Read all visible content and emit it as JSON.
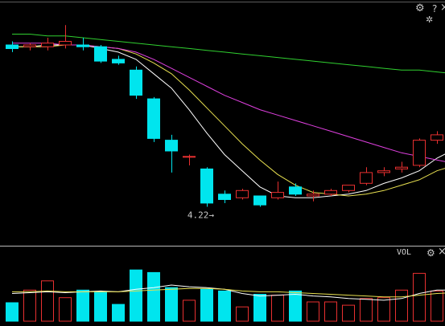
{
  "toolbar": {
    "main": [
      {
        "name": "gear-icon",
        "glyph": "⚙"
      },
      {
        "name": "help-icon",
        "glyph": "?"
      },
      {
        "name": "close-icon",
        "glyph": "×"
      }
    ],
    "sub_glyph": "✲",
    "vol_gear_glyph": "⚙",
    "vol_close_glyph": "×"
  },
  "colors": {
    "background": "#000000",
    "up_candle": "#e83030",
    "down_candle": "#00e5ee",
    "ma_short": "#ffffff",
    "ma_mid": "#e8e050",
    "ma_long": "#e040e0",
    "ma_longest": "#30d030",
    "divider": "#b8b8b8",
    "low_marker": "#c8c8c8"
  },
  "chart_data": [
    {
      "type": "candlestick",
      "candles": [
        {
          "o": 5.12,
          "h": 5.14,
          "l": 5.08,
          "c": 5.1
        },
        {
          "o": 5.11,
          "h": 5.13,
          "l": 5.09,
          "c": 5.12
        },
        {
          "o": 5.11,
          "h": 5.16,
          "l": 5.09,
          "c": 5.13
        },
        {
          "o": 5.12,
          "h": 5.23,
          "l": 5.1,
          "c": 5.14
        },
        {
          "o": 5.12,
          "h": 5.16,
          "l": 5.09,
          "c": 5.11
        },
        {
          "o": 5.11,
          "h": 5.12,
          "l": 5.02,
          "c": 5.03
        },
        {
          "o": 5.04,
          "h": 5.06,
          "l": 5.01,
          "c": 5.02
        },
        {
          "o": 4.98,
          "h": 5.0,
          "l": 4.82,
          "c": 4.84
        },
        {
          "o": 4.82,
          "h": 4.83,
          "l": 4.58,
          "c": 4.6
        },
        {
          "o": 4.59,
          "h": 4.62,
          "l": 4.41,
          "c": 4.53
        },
        {
          "o": 4.5,
          "h": 4.51,
          "l": 4.45,
          "c": 4.5
        },
        {
          "o": 4.43,
          "h": 4.44,
          "l": 4.22,
          "c": 4.24
        },
        {
          "o": 4.29,
          "h": 4.31,
          "l": 4.24,
          "c": 4.26
        },
        {
          "o": 4.27,
          "h": 4.32,
          "l": 4.26,
          "c": 4.31
        },
        {
          "o": 4.28,
          "h": 4.28,
          "l": 4.22,
          "c": 4.23
        },
        {
          "o": 4.27,
          "h": 4.36,
          "l": 4.26,
          "c": 4.3
        },
        {
          "o": 4.33,
          "h": 4.35,
          "l": 4.28,
          "c": 4.29
        },
        {
          "o": 4.28,
          "h": 4.31,
          "l": 4.25,
          "c": 4.29
        },
        {
          "o": 4.29,
          "h": 4.32,
          "l": 4.28,
          "c": 4.31
        },
        {
          "o": 4.31,
          "h": 4.34,
          "l": 4.3,
          "c": 4.34
        },
        {
          "o": 4.35,
          "h": 4.44,
          "l": 4.34,
          "c": 4.41
        },
        {
          "o": 4.41,
          "h": 4.44,
          "l": 4.39,
          "c": 4.42
        },
        {
          "o": 4.43,
          "h": 4.47,
          "l": 4.41,
          "c": 4.44
        },
        {
          "o": 4.45,
          "h": 4.6,
          "l": 4.44,
          "c": 4.59
        },
        {
          "o": 4.59,
          "h": 4.64,
          "l": 4.57,
          "c": 4.62
        },
        {
          "o": 4.62,
          "h": 4.64,
          "l": 4.58,
          "c": 4.58
        }
      ],
      "ma": [
        {
          "key": "ma_short",
          "values": [
            5.11,
            5.11,
            5.12,
            5.12,
            5.12,
            5.1,
            5.08,
            5.04,
            4.96,
            4.88,
            4.76,
            4.63,
            4.51,
            4.42,
            4.33,
            4.28,
            4.27,
            4.27,
            4.28,
            4.29,
            4.31,
            4.35,
            4.38,
            4.42,
            4.49,
            4.54
          ]
        },
        {
          "key": "ma_mid",
          "values": [
            5.11,
            5.11,
            5.11,
            5.12,
            5.12,
            5.11,
            5.1,
            5.07,
            5.02,
            4.96,
            4.87,
            4.77,
            4.67,
            4.57,
            4.48,
            4.4,
            4.34,
            4.3,
            4.29,
            4.28,
            4.29,
            4.31,
            4.34,
            4.37,
            4.42,
            4.45
          ]
        },
        {
          "key": "ma_long",
          "values": [
            5.13,
            5.13,
            5.13,
            5.12,
            5.12,
            5.11,
            5.1,
            5.08,
            5.04,
            4.99,
            4.94,
            4.89,
            4.84,
            4.8,
            4.76,
            4.73,
            4.7,
            4.67,
            4.64,
            4.61,
            4.58,
            4.55,
            4.52,
            4.5,
            4.48,
            4.46
          ]
        },
        {
          "key": "ma_longest",
          "values": [
            5.18,
            5.18,
            5.17,
            5.17,
            5.16,
            5.15,
            5.14,
            5.13,
            5.12,
            5.11,
            5.1,
            5.09,
            5.08,
            5.07,
            5.06,
            5.05,
            5.04,
            5.03,
            5.02,
            5.01,
            5.0,
            4.99,
            4.98,
            4.98,
            4.97,
            4.96
          ]
        }
      ],
      "ylim": [
        4.03,
        5.37
      ],
      "low_annotation": {
        "label": "4.22",
        "arrow": "→",
        "index": 11
      }
    },
    {
      "type": "bar",
      "title": "VOL",
      "values": [
        22,
        37,
        48,
        28,
        37,
        35,
        20,
        61,
        58,
        40,
        25,
        38,
        36,
        17,
        32,
        31,
        36,
        23,
        23,
        19,
        27,
        28,
        37,
        57,
        36,
        22
      ],
      "ma": [
        {
          "key": "ma_short",
          "values": [
            33,
            34,
            35,
            34,
            35,
            36,
            35,
            38,
            40,
            43,
            41,
            40,
            38,
            33,
            30,
            31,
            32,
            30,
            29,
            27,
            26,
            25,
            27,
            33,
            37,
            37
          ]
        },
        {
          "key": "ma_mid",
          "values": [
            35,
            35,
            36,
            35,
            35,
            35,
            35,
            36,
            37,
            38,
            39,
            39,
            38,
            36,
            35,
            35,
            34,
            33,
            32,
            31,
            30,
            29,
            29,
            31,
            33,
            34
          ]
        }
      ],
      "ylim": [
        0,
        66
      ]
    }
  ]
}
